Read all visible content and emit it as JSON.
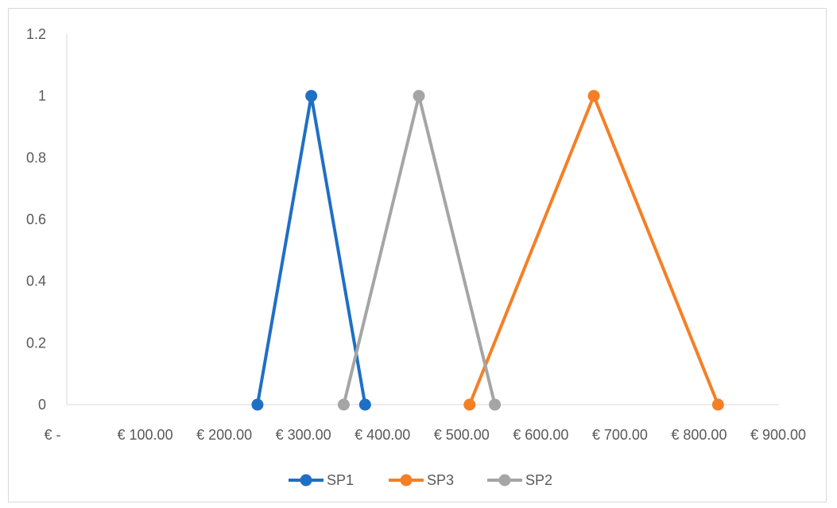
{
  "chart_data": {
    "type": "line",
    "title": "",
    "xlabel": "",
    "ylabel": "",
    "xlim": [
      0,
      900
    ],
    "ylim": [
      0,
      1.2
    ],
    "y_ticks": [
      "0",
      "0.2",
      "0.4",
      "0.6",
      "0.8",
      "1",
      "1.2"
    ],
    "y_tick_values": [
      0,
      0.2,
      0.4,
      0.6,
      0.8,
      1,
      1.2
    ],
    "x_ticks": [
      "€ -",
      "€ 100.00",
      "€ 200.00",
      "€ 300.00",
      "€ 400.00",
      "€ 500.00",
      "€ 600.00",
      "€ 700.00",
      "€ 800.00",
      "€ 900.00"
    ],
    "x_tick_values": [
      0,
      100,
      200,
      300,
      400,
      500,
      600,
      700,
      800,
      900
    ],
    "grid": false,
    "legend_position": "bottom",
    "series": [
      {
        "name": "SP1",
        "color": "#1f6fc5",
        "x": [
          241,
          309,
          377
        ],
        "y": [
          0,
          1,
          0
        ]
      },
      {
        "name": "SP3",
        "color": "#f57f25",
        "x": [
          509,
          666,
          823
        ],
        "y": [
          0,
          1,
          0
        ]
      },
      {
        "name": "SP2",
        "color": "#a5a5a5",
        "x": [
          350,
          445,
          541
        ],
        "y": [
          0,
          1,
          0
        ]
      }
    ]
  }
}
